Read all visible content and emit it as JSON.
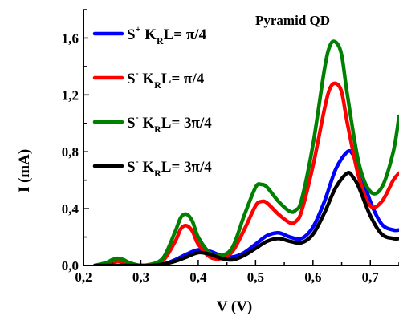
{
  "chart_data": {
    "type": "line",
    "title": "Pyramid QD",
    "xlabel": "V (V)",
    "ylabel": "I (mA)",
    "xlim": [
      0.2,
      0.75
    ],
    "ylim": [
      0.0,
      1.8
    ],
    "xticks": [
      0.2,
      0.3,
      0.4,
      0.5,
      0.6,
      0.7
    ],
    "xtick_labels": [
      "0,2",
      "0,3",
      "0,4",
      "0,5",
      "0,6",
      "0,7"
    ],
    "yticks": [
      0.0,
      0.4,
      0.8,
      1.2,
      1.6
    ],
    "ytick_labels": [
      "0,0",
      "0,4",
      "0,8",
      "1,2",
      "1,6"
    ],
    "legend_position": "top-left",
    "series": [
      {
        "legend": {
          "base": "S",
          "sup": "+",
          "mid": " K",
          "sub": "R",
          "end": "L= π/4"
        },
        "color": "#0000ff",
        "x": [
          0.22,
          0.24,
          0.26,
          0.28,
          0.3,
          0.32,
          0.34,
          0.36,
          0.38,
          0.4,
          0.42,
          0.44,
          0.46,
          0.48,
          0.5,
          0.52,
          0.54,
          0.56,
          0.58,
          0.6,
          0.62,
          0.64,
          0.66,
          0.67,
          0.68,
          0.7,
          0.72,
          0.74,
          0.75
        ],
        "y": [
          0.0,
          0.0,
          0.0,
          0.0,
          0.0,
          0.0,
          0.01,
          0.04,
          0.08,
          0.11,
          0.1,
          0.07,
          0.06,
          0.09,
          0.15,
          0.21,
          0.23,
          0.2,
          0.19,
          0.27,
          0.45,
          0.68,
          0.8,
          0.78,
          0.7,
          0.45,
          0.29,
          0.25,
          0.25
        ]
      },
      {
        "legend": {
          "base": "S",
          "sup": "-",
          "mid": " K",
          "sub": "R",
          "end": "L= π/4"
        },
        "color": "#ff0000",
        "x": [
          0.22,
          0.24,
          0.25,
          0.26,
          0.27,
          0.28,
          0.3,
          0.32,
          0.34,
          0.36,
          0.37,
          0.38,
          0.39,
          0.4,
          0.42,
          0.44,
          0.46,
          0.48,
          0.5,
          0.51,
          0.52,
          0.54,
          0.56,
          0.57,
          0.58,
          0.6,
          0.62,
          0.63,
          0.64,
          0.65,
          0.66,
          0.68,
          0.7,
          0.72,
          0.74,
          0.75
        ],
        "y": [
          0.0,
          0.01,
          0.02,
          0.03,
          0.02,
          0.01,
          0.0,
          0.01,
          0.04,
          0.17,
          0.26,
          0.28,
          0.24,
          0.15,
          0.06,
          0.05,
          0.1,
          0.25,
          0.42,
          0.45,
          0.44,
          0.36,
          0.3,
          0.31,
          0.38,
          0.7,
          1.1,
          1.25,
          1.28,
          1.22,
          1.0,
          0.62,
          0.42,
          0.45,
          0.6,
          0.65
        ]
      },
      {
        "legend": {
          "base": "S",
          "sup": "-",
          "mid": " K",
          "sub": "R",
          "end": "L= 3π/4"
        },
        "color": "#008000",
        "x": [
          0.22,
          0.24,
          0.25,
          0.26,
          0.27,
          0.28,
          0.3,
          0.32,
          0.34,
          0.36,
          0.37,
          0.38,
          0.39,
          0.4,
          0.42,
          0.44,
          0.46,
          0.48,
          0.5,
          0.51,
          0.52,
          0.54,
          0.56,
          0.57,
          0.58,
          0.6,
          0.62,
          0.63,
          0.64,
          0.65,
          0.66,
          0.68,
          0.7,
          0.72,
          0.74,
          0.75
        ],
        "y": [
          0.0,
          0.02,
          0.04,
          0.05,
          0.04,
          0.02,
          0.0,
          0.01,
          0.06,
          0.24,
          0.34,
          0.36,
          0.31,
          0.2,
          0.09,
          0.07,
          0.13,
          0.35,
          0.55,
          0.57,
          0.55,
          0.45,
          0.38,
          0.39,
          0.46,
          0.85,
          1.38,
          1.55,
          1.57,
          1.48,
          1.2,
          0.72,
          0.52,
          0.55,
          0.8,
          1.05
        ]
      },
      {
        "legend": {
          "base": "S",
          "sup": "-",
          "mid": " K",
          "sub": "R",
          "end": "L= 3π/4"
        },
        "color": "#000000",
        "x": [
          0.22,
          0.24,
          0.26,
          0.28,
          0.3,
          0.32,
          0.34,
          0.36,
          0.38,
          0.4,
          0.42,
          0.44,
          0.46,
          0.48,
          0.5,
          0.52,
          0.54,
          0.56,
          0.58,
          0.6,
          0.62,
          0.64,
          0.66,
          0.67,
          0.68,
          0.7,
          0.72,
          0.74,
          0.75
        ],
        "y": [
          0.0,
          0.0,
          0.0,
          0.0,
          0.0,
          0.0,
          0.01,
          0.03,
          0.06,
          0.09,
          0.08,
          0.05,
          0.04,
          0.07,
          0.12,
          0.17,
          0.19,
          0.17,
          0.16,
          0.22,
          0.37,
          0.55,
          0.65,
          0.62,
          0.55,
          0.35,
          0.22,
          0.19,
          0.19
        ]
      }
    ]
  }
}
